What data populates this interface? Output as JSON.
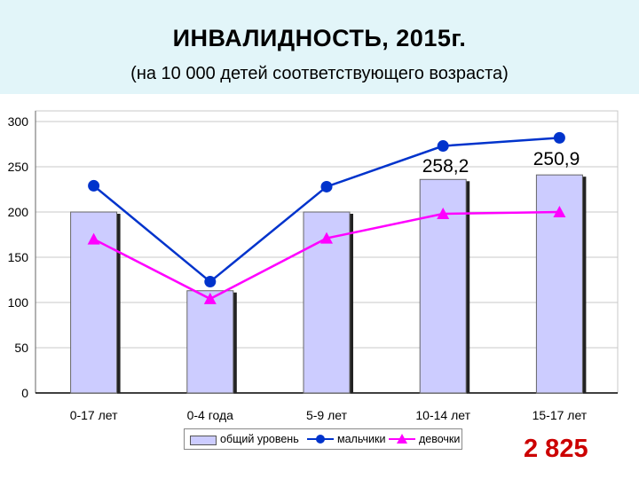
{
  "header": {
    "title": "ИНВАЛИДНОСТЬ, 2015г.",
    "subtitle": "(на 10 000 детей соответствующего возраста)"
  },
  "chart_data": {
    "type": "bar",
    "categories": [
      "0-17 лет",
      "0-4 года",
      "5-9 лет",
      "10-14 лет",
      "15-17 лет"
    ],
    "ylim": [
      0,
      300
    ],
    "yticks": [
      "0",
      "50",
      "100",
      "150",
      "200",
      "250",
      "300"
    ],
    "grid": true,
    "legend_position": "bottom",
    "series": [
      {
        "name": "общий уровень",
        "type": "bar",
        "color": "#ccccff",
        "values": [
          200,
          113,
          200,
          236,
          241
        ]
      },
      {
        "name": "мальчики",
        "type": "line",
        "marker": "circle",
        "color": "#0033cc",
        "values": [
          229,
          123,
          228,
          273,
          282
        ]
      },
      {
        "name": "девочки",
        "type": "line",
        "marker": "triangle",
        "color": "#ff00ff",
        "values": [
          170,
          104,
          171,
          198,
          200
        ]
      }
    ],
    "annotations": [
      "258,2",
      "250,9"
    ]
  },
  "total_value": "2 825",
  "colors": {
    "header_bg": "#e2f5f9",
    "accent_total": "#cc0000",
    "grid": "#c8c8c8"
  }
}
